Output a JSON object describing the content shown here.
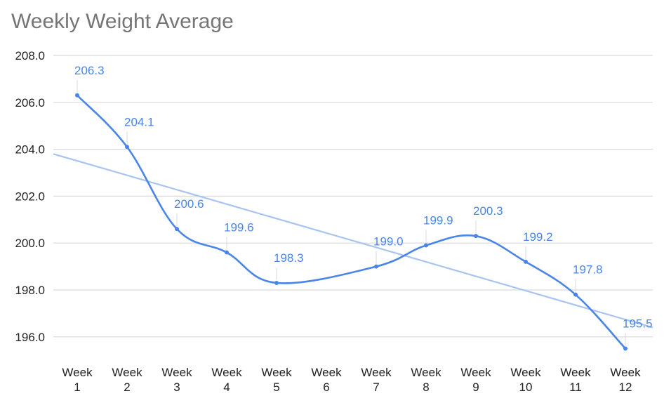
{
  "chart_data": {
    "type": "line",
    "title": "Weekly Weight Average",
    "xlabel": "",
    "ylabel": "",
    "categories": [
      [
        "Week",
        "1"
      ],
      [
        "Week",
        "2"
      ],
      [
        "Week",
        "3"
      ],
      [
        "Week",
        "4"
      ],
      [
        "Week",
        "5"
      ],
      [
        "Week",
        "6"
      ],
      [
        "Week",
        "7"
      ],
      [
        "Week",
        "8"
      ],
      [
        "Week",
        "9"
      ],
      [
        "Week",
        "10"
      ],
      [
        "Week",
        "11"
      ],
      [
        "Week",
        "12"
      ]
    ],
    "series": [
      {
        "values": [
          206.3,
          204.1,
          200.6,
          199.6,
          198.3,
          null,
          199.0,
          199.9,
          200.3,
          199.2,
          197.8,
          195.5
        ],
        "labels": [
          "206.3",
          "204.1",
          "200.6",
          "199.6",
          "198.3",
          "",
          "199.0",
          "199.9",
          "200.3",
          "199.2",
          "197.8",
          "195.5"
        ],
        "color": "#4a86e8",
        "smooth": true
      }
    ],
    "trendline": {
      "type": "linear",
      "color": "#a9c4f1",
      "start": 203.8,
      "end": 196.4
    },
    "ylim": [
      195.0,
      208.0
    ],
    "yticks": [
      "196.0",
      "198.0",
      "200.0",
      "202.0",
      "204.0",
      "206.0",
      "208.0"
    ],
    "ytick_values": [
      196,
      198,
      200,
      202,
      204,
      206,
      208
    ],
    "grid": true,
    "legend": "none"
  }
}
